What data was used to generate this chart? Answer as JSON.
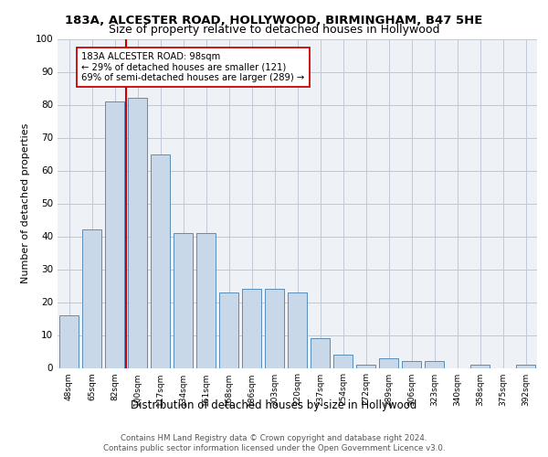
{
  "title1": "183A, ALCESTER ROAD, HOLLYWOOD, BIRMINGHAM, B47 5HE",
  "title2": "Size of property relative to detached houses in Hollywood",
  "xlabel": "Distribution of detached houses by size in Hollywood",
  "ylabel": "Number of detached properties",
  "bar_labels": [
    "48sqm",
    "65sqm",
    "82sqm",
    "100sqm",
    "117sqm",
    "134sqm",
    "151sqm",
    "168sqm",
    "186sqm",
    "203sqm",
    "220sqm",
    "237sqm",
    "254sqm",
    "272sqm",
    "289sqm",
    "306sqm",
    "323sqm",
    "340sqm",
    "358sqm",
    "375sqm",
    "392sqm"
  ],
  "bar_values": [
    16,
    42,
    81,
    82,
    65,
    41,
    41,
    23,
    24,
    24,
    23,
    9,
    4,
    1,
    3,
    2,
    2,
    0,
    1,
    0,
    1
  ],
  "bar_color": "#c8d8e8",
  "bar_edge_color": "#5b8db8",
  "vline_x": 2.5,
  "vline_color": "#cc0000",
  "annotation_title": "183A ALCESTER ROAD: 98sqm",
  "annotation_line1": "← 29% of detached houses are smaller (121)",
  "annotation_line2": "69% of semi-detached houses are larger (289) →",
  "annotation_box_color": "#ffffff",
  "annotation_box_edge": "#cc0000",
  "grid_color": "#c0c8d8",
  "background_color": "#eef2f7",
  "footer1": "Contains HM Land Registry data © Crown copyright and database right 2024.",
  "footer2": "Contains public sector information licensed under the Open Government Licence v3.0.",
  "ylim": [
    0,
    100
  ],
  "yticks": [
    0,
    10,
    20,
    30,
    40,
    50,
    60,
    70,
    80,
    90,
    100
  ]
}
